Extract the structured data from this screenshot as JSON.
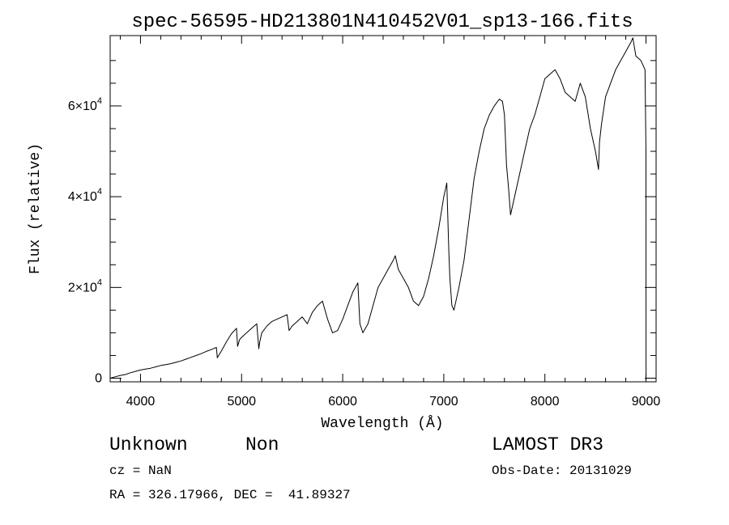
{
  "chart_data": {
    "type": "line",
    "title": "spec-56595-HD213801N410452V01_sp13-166.fits",
    "xlabel": "Wavelength (Å)",
    "ylabel": "Flux (relative)",
    "xlim": [
      3700,
      9100
    ],
    "ylim": [
      -800,
      75500
    ],
    "x_ticks": [
      4000,
      5000,
      6000,
      7000,
      8000,
      9000
    ],
    "x_tick_labels": [
      "4000",
      "5000",
      "6000",
      "7000",
      "8000",
      "9000"
    ],
    "y_ticks": [
      0,
      20000,
      40000,
      60000
    ],
    "y_tick_labels": [
      {
        "mantissa": "0",
        "exp": ""
      },
      {
        "mantissa": "2×10",
        "exp": "4"
      },
      {
        "mantissa": "4×10",
        "exp": "4"
      },
      {
        "mantissa": "6×10",
        "exp": "4"
      }
    ],
    "series": [
      {
        "name": "flux",
        "x": [
          3700,
          3750,
          3800,
          3850,
          3900,
          3950,
          4000,
          4050,
          4100,
          4150,
          4200,
          4250,
          4300,
          4350,
          4400,
          4450,
          4500,
          4550,
          4600,
          4650,
          4700,
          4750,
          4760,
          4800,
          4850,
          4900,
          4950,
          4960,
          4980,
          5000,
          5050,
          5100,
          5150,
          5170,
          5180,
          5200,
          5250,
          5300,
          5350,
          5400,
          5450,
          5470,
          5500,
          5550,
          5600,
          5650,
          5700,
          5750,
          5800,
          5850,
          5900,
          5950,
          6000,
          6050,
          6100,
          6150,
          6170,
          6200,
          6250,
          6300,
          6350,
          6400,
          6450,
          6500,
          6520,
          6550,
          6600,
          6650,
          6700,
          6750,
          6800,
          6850,
          6900,
          6950,
          7000,
          7030,
          7050,
          7060,
          7080,
          7100,
          7120,
          7150,
          7200,
          7250,
          7300,
          7350,
          7400,
          7450,
          7500,
          7550,
          7580,
          7600,
          7620,
          7640,
          7660,
          7700,
          7750,
          7800,
          7850,
          7900,
          7950,
          8000,
          8050,
          8100,
          8150,
          8200,
          8250,
          8300,
          8350,
          8400,
          8450,
          8500,
          8530,
          8540,
          8560,
          8600,
          8650,
          8700,
          8750,
          8800,
          8850,
          8870,
          8900,
          8950,
          8990,
          9000,
          9001
        ],
        "y": [
          0,
          300,
          600,
          800,
          1200,
          1500,
          1800,
          2000,
          2200,
          2500,
          2800,
          3000,
          3200,
          3500,
          3800,
          4200,
          4600,
          5000,
          5400,
          5900,
          6300,
          6800,
          4500,
          6000,
          8000,
          9800,
          11000,
          7000,
          8500,
          9000,
          10000,
          11000,
          12000,
          6500,
          8000,
          10000,
          11500,
          12500,
          13000,
          13500,
          14000,
          10500,
          11500,
          12500,
          13500,
          12000,
          14500,
          16000,
          17000,
          13000,
          10000,
          10500,
          13000,
          16000,
          19000,
          21000,
          12000,
          10000,
          12000,
          16000,
          20000,
          22000,
          24000,
          26000,
          27000,
          24000,
          22000,
          20000,
          17000,
          16000,
          18000,
          22000,
          27000,
          33000,
          40000,
          43000,
          28000,
          22000,
          16000,
          15000,
          17000,
          20000,
          26000,
          35000,
          44000,
          50000,
          55000,
          58000,
          60000,
          61500,
          61000,
          58000,
          47000,
          42000,
          36000,
          40000,
          45000,
          50000,
          55000,
          58000,
          62000,
          66000,
          67000,
          68000,
          66000,
          63000,
          62000,
          61000,
          65000,
          62000,
          55000,
          50000,
          46000,
          52000,
          56000,
          62000,
          65000,
          68000,
          70000,
          72000,
          74000,
          75000,
          71000,
          70000,
          68000,
          50000,
          -500
        ]
      }
    ]
  },
  "info": {
    "object_class": "Unknown",
    "object_subclass": "Non",
    "cz": "cz = NaN",
    "ra_dec": "RA = 326.17966, DEC =  41.89327",
    "release": "LAMOST DR3",
    "obs_date": "Obs-Date: 20131029"
  }
}
